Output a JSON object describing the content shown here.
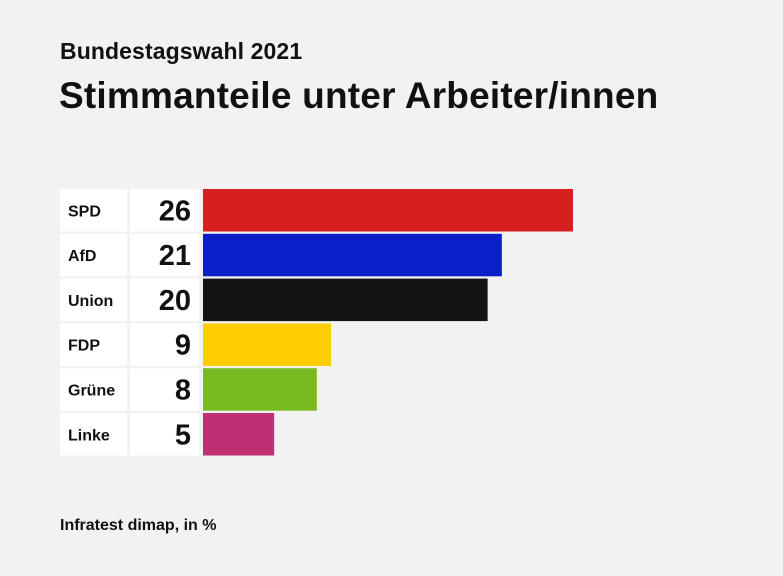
{
  "header": {
    "supertitle": "Bundestagswahl 2021",
    "title": "Stimmanteile unter Arbeiter/innen"
  },
  "footer": {
    "source": "Infratest dimap, in %"
  },
  "chart_data": {
    "type": "bar",
    "orientation": "horizontal",
    "title": "Stimmanteile unter Arbeiter/innen",
    "subtitle": "Bundestagswahl 2021",
    "unit": "%",
    "categories": [
      "SPD",
      "AfD",
      "Union",
      "FDP",
      "Grüne",
      "Linke"
    ],
    "values": [
      26,
      21,
      20,
      9,
      8,
      5
    ],
    "colors": [
      "#d71f1f",
      "#0a1fc8",
      "#141414",
      "#ffcc00",
      "#77bb21",
      "#bf2f74"
    ],
    "xlim": [
      0,
      26
    ],
    "grid": false,
    "legend": "none"
  }
}
